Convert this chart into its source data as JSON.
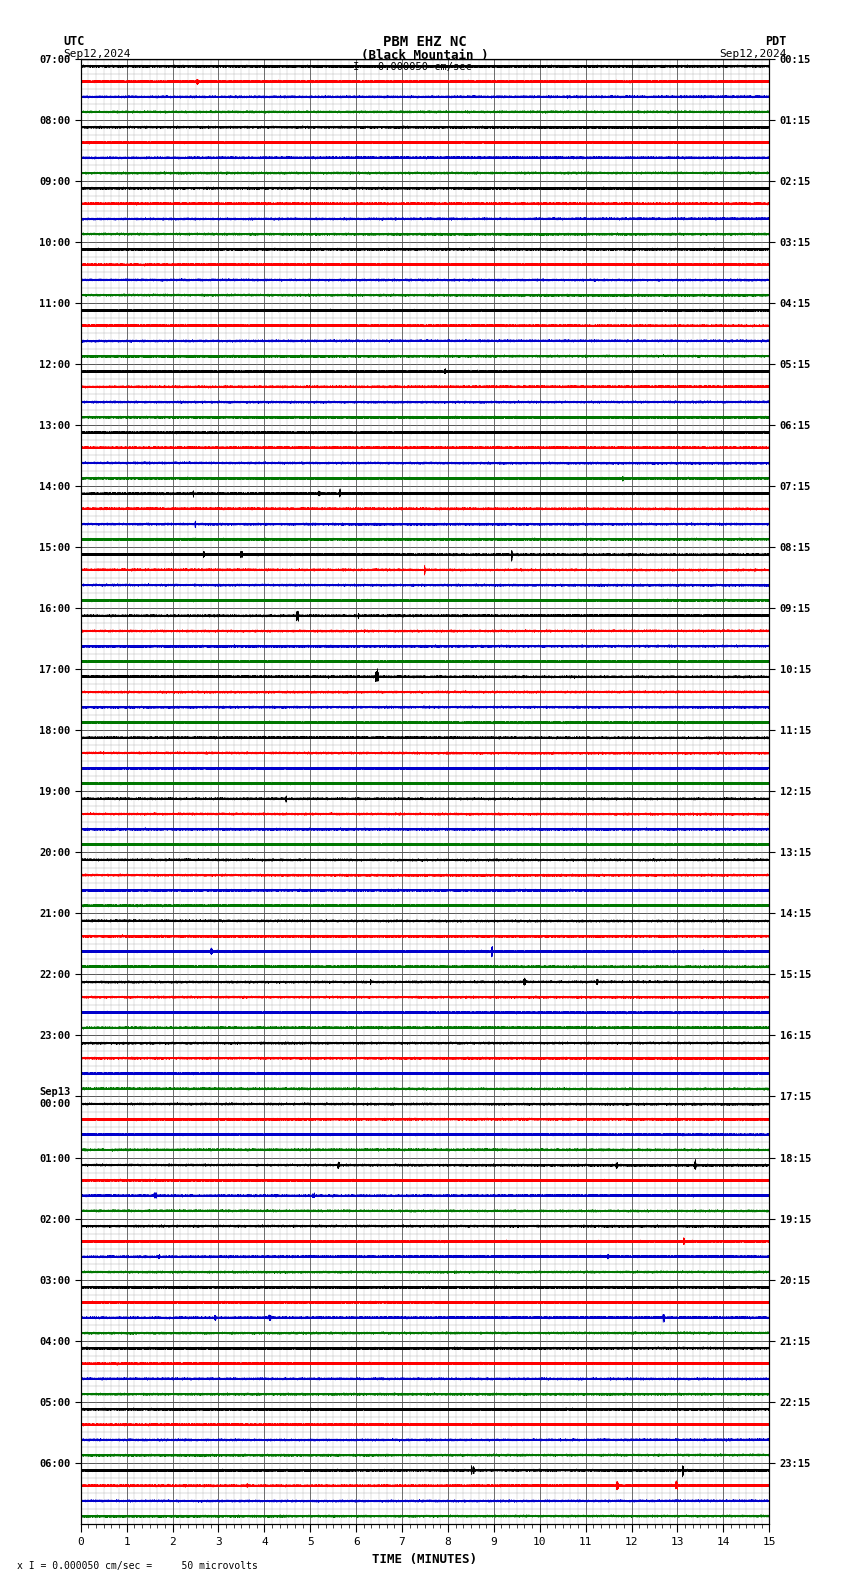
{
  "title_line1": "PBM EHZ NC",
  "title_line2": "(Black Mountain )",
  "scale_label": "I = 0.000050 cm/sec",
  "left_label_top": "UTC",
  "left_label_date": "Sep12,2024",
  "right_label_top": "PDT",
  "right_label_date": "Sep12,2024",
  "bottom_label": "TIME (MINUTES)",
  "footnote": "x I = 0.000050 cm/sec =     50 microvolts",
  "utc_hour_labels": [
    "07:00",
    "08:00",
    "09:00",
    "10:00",
    "11:00",
    "12:00",
    "13:00",
    "14:00",
    "15:00",
    "16:00",
    "17:00",
    "18:00",
    "19:00",
    "20:00",
    "21:00",
    "22:00",
    "23:00",
    "Sep13\n00:00",
    "01:00",
    "02:00",
    "03:00",
    "04:00",
    "05:00",
    "06:00"
  ],
  "pdt_hour_labels": [
    "00:15",
    "01:15",
    "02:15",
    "03:15",
    "04:15",
    "05:15",
    "06:15",
    "07:15",
    "08:15",
    "09:15",
    "10:15",
    "11:15",
    "12:15",
    "13:15",
    "14:15",
    "15:15",
    "16:15",
    "17:15",
    "18:15",
    "19:15",
    "20:15",
    "21:15",
    "22:15",
    "23:15"
  ],
  "n_hours": 24,
  "traces_per_hour": 4,
  "n_minutes": 15,
  "background_color": "#ffffff",
  "grid_color": "#aaaaaa",
  "trace_colors": [
    "#000000",
    "#ff0000",
    "#0000cc",
    "#007700"
  ],
  "base_amplitude": 0.025,
  "seed": 12345
}
